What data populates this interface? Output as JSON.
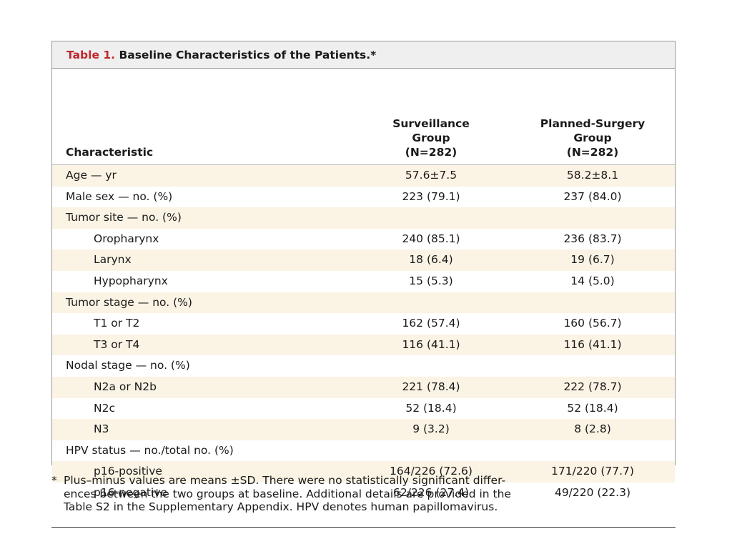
{
  "caption": {
    "label": "Table 1.",
    "text": "Baseline Characteristics of the Patients.*"
  },
  "header": {
    "characteristic": "Characteristic",
    "group1": [
      "Surveillance",
      "Group",
      "(N=282)"
    ],
    "group2": [
      "Planned-Surgery",
      "Group",
      "(N=282)"
    ]
  },
  "rows": [
    {
      "label": "Age — yr",
      "v1": "57.6±7.5",
      "v2": "58.2±8.1",
      "indent": false,
      "shaded": true
    },
    {
      "label": "Male sex — no. (%)",
      "v1": "223 (79.1)",
      "v2": "237 (84.0)",
      "indent": false,
      "shaded": false
    },
    {
      "label": "Tumor site — no. (%)",
      "v1": "",
      "v2": "",
      "indent": false,
      "shaded": true
    },
    {
      "label": "Oropharynx",
      "v1": "240 (85.1)",
      "v2": "236 (83.7)",
      "indent": true,
      "shaded": false
    },
    {
      "label": "Larynx",
      "v1": "18 (6.4)",
      "v2": "19 (6.7)",
      "indent": true,
      "shaded": true
    },
    {
      "label": "Hypopharynx",
      "v1": "15 (5.3)",
      "v2": "14 (5.0)",
      "indent": true,
      "shaded": false
    },
    {
      "label": "Tumor stage — no. (%)",
      "v1": "",
      "v2": "",
      "indent": false,
      "shaded": true
    },
    {
      "label": "T1 or T2",
      "v1": "162 (57.4)",
      "v2": "160 (56.7)",
      "indent": true,
      "shaded": false
    },
    {
      "label": "T3 or T4",
      "v1": "116 (41.1)",
      "v2": "116 (41.1)",
      "indent": true,
      "shaded": true
    },
    {
      "label": "Nodal stage — no. (%)",
      "v1": "",
      "v2": "",
      "indent": false,
      "shaded": false
    },
    {
      "label": "N2a or N2b",
      "v1": "221 (78.4)",
      "v2": "222 (78.7)",
      "indent": true,
      "shaded": true
    },
    {
      "label": "N2c",
      "v1": "52 (18.4)",
      "v2": "52 (18.4)",
      "indent": true,
      "shaded": false
    },
    {
      "label": "N3",
      "v1": "9 (3.2)",
      "v2": "8 (2.8)",
      "indent": true,
      "shaded": true
    },
    {
      "label": "HPV status — no./total no. (%)",
      "v1": "",
      "v2": "",
      "indent": false,
      "shaded": false
    },
    {
      "label": "p16-positive",
      "v1": "164/226 (72.6)",
      "v2": "171/220 (77.7)",
      "indent": true,
      "shaded": true
    },
    {
      "label": "p16-negative",
      "v1": "62/226 (27.4)",
      "v2": "49/220 (22.3)",
      "indent": true,
      "shaded": false
    }
  ],
  "footnote": {
    "marker": "*",
    "lines": [
      "Plus–minus values are means ±SD. There were no statistically significant differ-",
      "ences between the two groups at baseline. Additional details are provided in the",
      "Table S2 in the Supplementary Appendix. HPV denotes human papillomavirus."
    ]
  },
  "colors": {
    "caption_label": "#c0282d",
    "caption_bar": "#efefef",
    "row_shade": "#fbf3e4",
    "border": "#9a9a9a"
  }
}
